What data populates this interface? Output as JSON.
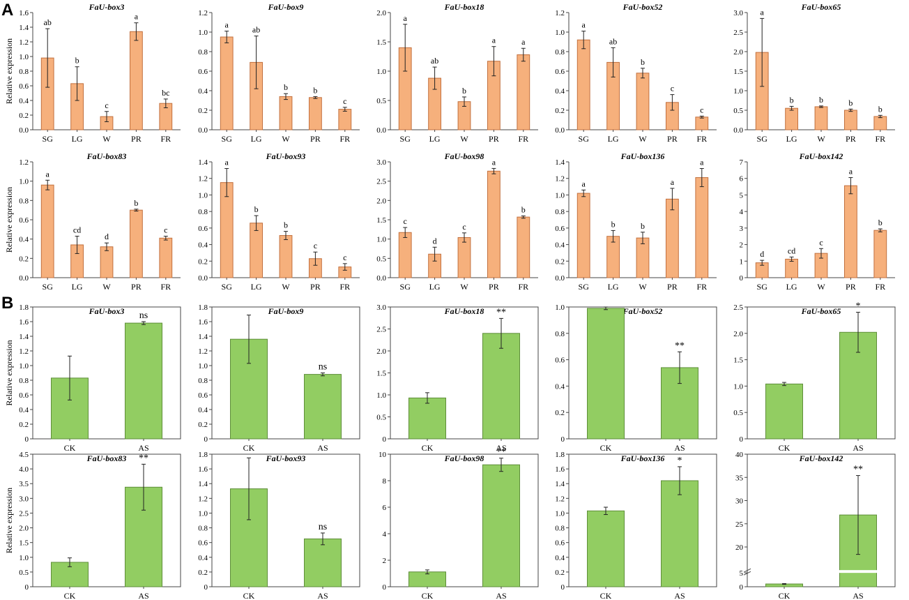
{
  "panels": {
    "A": "A",
    "B": "B"
  },
  "colors": {
    "panel_a_bar": "#f6b07c",
    "panel_b_bar": "#92cd62"
  },
  "chart_data": [
    {
      "panel": "A",
      "type": "bar",
      "title": "FaU-box3",
      "ylabel": "Relative expression",
      "categories": [
        "SG",
        "LG",
        "W",
        "PR",
        "FR"
      ],
      "values": [
        0.98,
        0.63,
        0.18,
        1.34,
        0.36
      ],
      "errors": [
        0.4,
        0.23,
        0.07,
        0.12,
        0.06
      ],
      "labels": [
        "ab",
        "b",
        "c",
        "a",
        "bc"
      ],
      "ylim": [
        0,
        1.6
      ],
      "yticks": [
        "0.0",
        "0.2",
        "0.4",
        "0.6",
        "0.8",
        "1.0",
        "1.2",
        "1.4",
        "1.6"
      ]
    },
    {
      "panel": "A",
      "type": "bar",
      "title": "FaU-box9",
      "ylabel": "",
      "categories": [
        "SG",
        "LG",
        "W",
        "PR",
        "FR"
      ],
      "values": [
        0.95,
        0.69,
        0.34,
        0.33,
        0.21
      ],
      "errors": [
        0.06,
        0.27,
        0.03,
        0.01,
        0.02
      ],
      "labels": [
        "a",
        "ab",
        "b",
        "b",
        "c"
      ],
      "ylim": [
        0,
        1.2
      ],
      "yticks": [
        "0.0",
        "0.2",
        "0.4",
        "0.6",
        "0.8",
        "1.0",
        "1.2"
      ]
    },
    {
      "panel": "A",
      "type": "bar",
      "title": "FaU-box18",
      "ylabel": "",
      "categories": [
        "SG",
        "LG",
        "W",
        "PR",
        "FR"
      ],
      "values": [
        1.4,
        0.88,
        0.48,
        1.17,
        1.28
      ],
      "errors": [
        0.4,
        0.19,
        0.08,
        0.25,
        0.11
      ],
      "labels": [
        "a",
        "ab",
        "b",
        "a",
        "a"
      ],
      "ylim": [
        0,
        2.0
      ],
      "yticks": [
        "0.0",
        "0.5",
        "1.0",
        "1.5",
        "2.0"
      ]
    },
    {
      "panel": "A",
      "type": "bar",
      "title": "FaU-box52",
      "ylabel": "",
      "categories": [
        "SG",
        "LG",
        "W",
        "PR",
        "FR"
      ],
      "values": [
        0.92,
        0.69,
        0.58,
        0.28,
        0.13
      ],
      "errors": [
        0.09,
        0.15,
        0.05,
        0.08,
        0.01
      ],
      "labels": [
        "a",
        "ab",
        "b",
        "c",
        "c"
      ],
      "ylim": [
        0,
        1.2
      ],
      "yticks": [
        "0.0",
        "0.2",
        "0.4",
        "0.6",
        "0.8",
        "1.0",
        "1.2"
      ]
    },
    {
      "panel": "A",
      "type": "bar",
      "title": "FaU-box65",
      "ylabel": "",
      "categories": [
        "SG",
        "LG",
        "W",
        "PR",
        "FR"
      ],
      "values": [
        1.98,
        0.55,
        0.59,
        0.5,
        0.34
      ],
      "errors": [
        0.87,
        0.05,
        0.02,
        0.03,
        0.03
      ],
      "labels": [
        "a",
        "b",
        "b",
        "b",
        "b"
      ],
      "ylim": [
        0,
        3.0
      ],
      "yticks": [
        "0.0",
        "0.5",
        "1.0",
        "1.5",
        "2.0",
        "2.5",
        "3.0"
      ]
    },
    {
      "panel": "A",
      "type": "bar",
      "title": "FaU-box83",
      "ylabel": "Relative expression",
      "categories": [
        "SG",
        "LG",
        "W",
        "PR",
        "FR"
      ],
      "values": [
        0.96,
        0.34,
        0.32,
        0.7,
        0.41
      ],
      "errors": [
        0.05,
        0.09,
        0.04,
        0.01,
        0.02
      ],
      "labels": [
        "a",
        "cd",
        "d",
        "b",
        "c"
      ],
      "ylim": [
        0,
        1.2
      ],
      "yticks": [
        "0.0",
        "0.2",
        "0.4",
        "0.6",
        "0.8",
        "1.0",
        "1.2"
      ]
    },
    {
      "panel": "A",
      "type": "bar",
      "title": "FaU-box93",
      "ylabel": "",
      "categories": [
        "SG",
        "LG",
        "W",
        "PR",
        "FR"
      ],
      "values": [
        1.15,
        0.66,
        0.51,
        0.23,
        0.13
      ],
      "errors": [
        0.17,
        0.09,
        0.05,
        0.08,
        0.04
      ],
      "labels": [
        "a",
        "b",
        "b",
        "c",
        "c"
      ],
      "ylim": [
        0,
        1.4
      ],
      "yticks": [
        "0.0",
        "0.2",
        "0.4",
        "0.6",
        "0.8",
        "1.0",
        "1.2",
        "1.4"
      ]
    },
    {
      "panel": "A",
      "type": "bar",
      "title": "FaU-box98",
      "ylabel": "",
      "categories": [
        "SG",
        "LG",
        "W",
        "PR",
        "FR"
      ],
      "values": [
        1.17,
        0.61,
        1.04,
        2.76,
        1.57
      ],
      "errors": [
        0.13,
        0.18,
        0.12,
        0.07,
        0.03
      ],
      "labels": [
        "c",
        "d",
        "c",
        "a",
        "b"
      ],
      "ylim": [
        0,
        3.0
      ],
      "yticks": [
        "0.0",
        "0.5",
        "1.0",
        "1.5",
        "2.0",
        "2.5",
        "3.0"
      ]
    },
    {
      "panel": "A",
      "type": "bar",
      "title": "FaU-box136",
      "ylabel": "",
      "categories": [
        "SG",
        "LG",
        "W",
        "PR",
        "FR"
      ],
      "values": [
        1.02,
        0.5,
        0.48,
        0.95,
        1.21
      ],
      "errors": [
        0.04,
        0.07,
        0.07,
        0.13,
        0.11
      ],
      "labels": [
        "a",
        "b",
        "b",
        "a",
        "a"
      ],
      "ylim": [
        0,
        1.4
      ],
      "yticks": [
        "0.0",
        "0.2",
        "0.4",
        "0.6",
        "0.8",
        "1.0",
        "1.2",
        "1.4"
      ]
    },
    {
      "panel": "A",
      "type": "bar",
      "title": "FaU-box142",
      "ylabel": "",
      "categories": [
        "SG",
        "LG",
        "W",
        "PR",
        "FR"
      ],
      "values": [
        0.9,
        1.12,
        1.47,
        5.56,
        2.86
      ],
      "errors": [
        0.15,
        0.13,
        0.29,
        0.49,
        0.09
      ],
      "labels": [
        "d",
        "cd",
        "c",
        "a",
        "b"
      ],
      "ylim": [
        0,
        7
      ],
      "yticks": [
        "0",
        "1",
        "2",
        "3",
        "4",
        "5",
        "6",
        "7"
      ]
    },
    {
      "panel": "B",
      "type": "bar",
      "title": "FaU-box3",
      "ylabel": "Relative expression",
      "categories": [
        "CK",
        "AS"
      ],
      "values": [
        0.83,
        1.58
      ],
      "errors": [
        0.3,
        0.02
      ],
      "labels": [
        "",
        "ns"
      ],
      "ylim": [
        0,
        1.8
      ],
      "yticks": [
        "0",
        "0.2",
        "0.4",
        "0.6",
        "0.8",
        "1.0",
        "1.2",
        "1.4",
        "1.6",
        "1.8"
      ]
    },
    {
      "panel": "B",
      "type": "bar",
      "title": "FaU-box9",
      "ylabel": "",
      "categories": [
        "CK",
        "AS"
      ],
      "values": [
        1.36,
        0.88
      ],
      "errors": [
        0.33,
        0.02
      ],
      "labels": [
        "",
        "ns"
      ],
      "ylim": [
        0,
        1.8
      ],
      "yticks": [
        "0",
        "0.2",
        "0.4",
        "0.6",
        "0.8",
        "1.0",
        "1.2",
        "1.4",
        "1.6",
        "1.8"
      ]
    },
    {
      "panel": "B",
      "type": "bar",
      "title": "FaU-box18",
      "ylabel": "",
      "categories": [
        "CK",
        "AS"
      ],
      "values": [
        0.93,
        2.4
      ],
      "errors": [
        0.12,
        0.34
      ],
      "labels": [
        "",
        "**"
      ],
      "ylim": [
        0,
        3.0
      ],
      "yticks": [
        "0",
        "0.5",
        "1.0",
        "1.5",
        "2.0",
        "2.5",
        "3.0"
      ]
    },
    {
      "panel": "B",
      "type": "bar",
      "title": "FaU-box52",
      "ylabel": "",
      "categories": [
        "CK",
        "AS"
      ],
      "values": [
        0.99,
        0.54
      ],
      "errors": [
        0.01,
        0.12
      ],
      "labels": [
        "",
        "**"
      ],
      "ylim": [
        0,
        1.0
      ],
      "yticks": [
        "0",
        "0.2",
        "0.4",
        "0.6",
        "0.8",
        "1.0"
      ]
    },
    {
      "panel": "B",
      "type": "bar",
      "title": "FaU-box65",
      "ylabel": "",
      "categories": [
        "CK",
        "AS"
      ],
      "values": [
        1.04,
        2.02
      ],
      "errors": [
        0.03,
        0.38
      ],
      "labels": [
        "",
        "*"
      ],
      "ylim": [
        0,
        2.5
      ],
      "yticks": [
        "0",
        "0.5",
        "1.0",
        "1.5",
        "2.0",
        "2.5"
      ]
    },
    {
      "panel": "B",
      "type": "bar",
      "title": "FaU-box83",
      "ylabel": "Relative expression",
      "categories": [
        "CK",
        "AS"
      ],
      "values": [
        0.83,
        3.38
      ],
      "errors": [
        0.15,
        0.78
      ],
      "labels": [
        "",
        "**"
      ],
      "ylim": [
        0,
        4.5
      ],
      "yticks": [
        "0",
        "0.5",
        "1.0",
        "1.5",
        "2.0",
        "2.5",
        "3.0",
        "3.5",
        "4.0",
        "4.5"
      ]
    },
    {
      "panel": "B",
      "type": "bar",
      "title": "FaU-box93",
      "ylabel": "",
      "categories": [
        "CK",
        "AS"
      ],
      "values": [
        1.33,
        0.65
      ],
      "errors": [
        0.42,
        0.08
      ],
      "labels": [
        "",
        "ns"
      ],
      "ylim": [
        0,
        1.8
      ],
      "yticks": [
        "0",
        "0.2",
        "0.4",
        "0.6",
        "0.8",
        "1.0",
        "1.2",
        "1.4",
        "1.6",
        "1.8"
      ]
    },
    {
      "panel": "B",
      "type": "bar",
      "title": "FaU-box98",
      "ylabel": "",
      "categories": [
        "CK",
        "AS"
      ],
      "values": [
        1.12,
        9.2
      ],
      "errors": [
        0.15,
        0.5
      ],
      "labels": [
        "",
        "**"
      ],
      "ylim": [
        0,
        10
      ],
      "yticks": [
        "0",
        "2",
        "4",
        "6",
        "8",
        "10"
      ]
    },
    {
      "panel": "B",
      "type": "bar",
      "title": "FaU-box136",
      "ylabel": "",
      "categories": [
        "CK",
        "AS"
      ],
      "values": [
        1.03,
        1.44
      ],
      "errors": [
        0.05,
        0.19
      ],
      "labels": [
        "",
        "*"
      ],
      "ylim": [
        0,
        1.8
      ],
      "yticks": [
        "0",
        "0.2",
        "0.4",
        "0.6",
        "0.8",
        "1.0",
        "1.2",
        "1.4",
        "1.6",
        "1.8"
      ]
    },
    {
      "panel": "B",
      "type": "bar",
      "title": "FaU-box142",
      "ylabel": "",
      "categories": [
        "CK",
        "AS"
      ],
      "values": [
        1.0,
        26.9
      ],
      "errors": [
        0.15,
        8.5
      ],
      "labels": [
        "",
        "**"
      ],
      "ylim": [
        0,
        40
      ],
      "axis_break": [
        5,
        15
      ],
      "yticks": [
        "0",
        "5",
        "20",
        "25",
        "30",
        "35",
        "40"
      ],
      "ytick_values": [
        0,
        5,
        20,
        25,
        30,
        35,
        40
      ]
    }
  ]
}
